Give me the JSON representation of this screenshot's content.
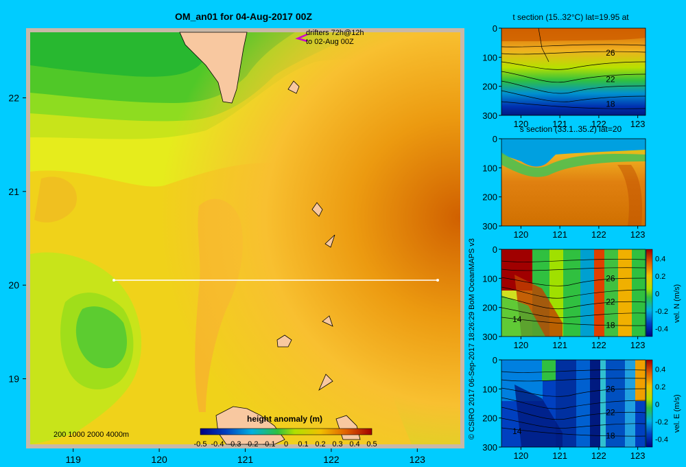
{
  "colors": {
    "background": "#00ccff",
    "frame": "#c8b8a8",
    "land": "#f8c8a0",
    "section_line": "#ffffff",
    "drifter_arrow": "#cc00cc"
  },
  "map": {
    "title": "OM_an01 for 04-Aug-2017 00Z",
    "drifters_note": [
      "drifters 72h@12h",
      "to 02-Aug 00Z"
    ],
    "depth_contours_label": "200  1000  2000  4000m",
    "colorbar_title": "height anomaly (m)",
    "credit": "© CSIRO 2017   06-Sep-2017 18:26:29 BoM OceanMAPS v3"
  },
  "chart_data": [
    {
      "type": "heatmap",
      "title": "OM_an01 for 04-Aug-2017 00Z",
      "quantity": "height anomaly (m)",
      "x_ticks": [
        "119",
        "120",
        "121",
        "122",
        "123"
      ],
      "y_ticks": [
        "22",
        "21",
        "20",
        "19"
      ],
      "xlim": [
        118.5,
        123.5
      ],
      "ylim": [
        18.3,
        22.7
      ],
      "colorbar": {
        "ticks": [
          "-0.5",
          "-0.4",
          "-0.3",
          "-0.2",
          "-0.1",
          "0",
          "0.1",
          "0.2",
          "0.3",
          "0.4",
          "0.5"
        ],
        "range": [
          -0.5,
          0.5
        ]
      },
      "section_line": {
        "lat": 20.0,
        "lon": [
          119.5,
          123.2
        ]
      },
      "depth_contours": [
        "200",
        "1000",
        "2000",
        "4000m"
      ]
    },
    {
      "type": "heatmap",
      "title": "t section (15..32°C) lat=19.95 at",
      "x_ticks": [
        "120",
        "121",
        "122",
        "123"
      ],
      "y_ticks": [
        "0",
        "100",
        "200",
        "300"
      ],
      "contour_labels": [
        "26",
        "22",
        "18"
      ]
    },
    {
      "type": "heatmap",
      "title": "s section (33.1..35.2) lat=20",
      "x_ticks": [
        "120",
        "121",
        "122",
        "123"
      ],
      "y_ticks": [
        "0",
        "100",
        "200",
        "300"
      ]
    },
    {
      "type": "heatmap",
      "title": "",
      "x_ticks": [
        "120",
        "121",
        "122",
        "123"
      ],
      "y_ticks": [
        "0",
        "100",
        "200",
        "300"
      ],
      "contour_labels": [
        "26",
        "22",
        "18",
        "14"
      ],
      "colorbar": {
        "label": "vel. N (m/s)",
        "ticks": [
          "0.4",
          "0.2",
          "0",
          "-0.2",
          "-0.4"
        ]
      }
    },
    {
      "type": "heatmap",
      "title": "",
      "x_ticks": [
        "120",
        "121",
        "122",
        "123"
      ],
      "y_ticks": [
        "0",
        "100",
        "200",
        "300"
      ],
      "contour_labels": [
        "26",
        "22",
        "18",
        "14"
      ],
      "colorbar": {
        "label": "vel. E (m/s)",
        "ticks": [
          "0.4",
          "0.2",
          "0",
          "-0.2",
          "-0.4"
        ]
      }
    }
  ]
}
